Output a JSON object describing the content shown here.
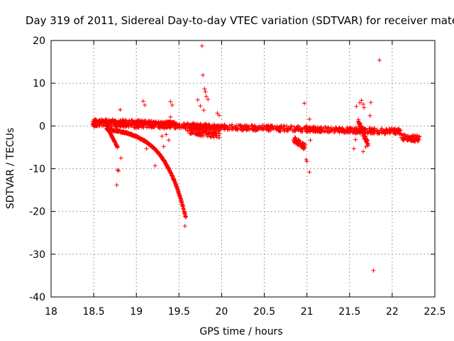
{
  "chart_data": {
    "type": "scatter",
    "title": "Day 319 of 2011, Sidereal Day-to-day VTEC variation (SDTVAR) for receiver mate",
    "xlabel": "GPS time / hours",
    "ylabel": "SDTVAR / TECUs",
    "xlim": [
      18,
      22.5
    ],
    "ylim": [
      -40,
      20
    ],
    "xticks": [
      "18",
      "18.5",
      "19",
      "19.5",
      "20",
      "20.5",
      "21",
      "21.5",
      "22",
      "22.5"
    ],
    "yticks": [
      "-40",
      "-30",
      "-20",
      "-10",
      "0",
      "10",
      "20"
    ],
    "grid": true,
    "marker": "+",
    "color": "#ff0000",
    "dense_bands": [
      {
        "name": "main band",
        "x": [
          18.48,
          22.1
        ],
        "y_start": 0.5,
        "y_end": -1.3,
        "spread": 1.3
      },
      {
        "name": "upper band",
        "x": [
          18.5,
          19.45
        ],
        "y_start": 1.2,
        "y_end": 0.6,
        "spread": 0.9
      },
      {
        "name": "diverging track",
        "x": [
          18.65,
          19.58
        ],
        "y_start": -0.8,
        "y_end": -21.5,
        "curve": "exponential"
      },
      {
        "name": "short descending track",
        "x": [
          18.65,
          18.78
        ],
        "y_start": 0,
        "y_end": -5,
        "curve": "linear"
      },
      {
        "name": "cluster near 19.7-19.9",
        "x": [
          19.6,
          19.98
        ],
        "y_start": -0.5,
        "y_end": -1.5,
        "spread": 2.8
      },
      {
        "name": "cluster near 20.85-20.95",
        "x": [
          20.84,
          20.98
        ],
        "y_start": -3,
        "y_end": -5,
        "spread": 1.5
      },
      {
        "name": "cluster near 21.6-21.72",
        "x": [
          21.6,
          21.72
        ],
        "y_start": 1,
        "y_end": -4.5,
        "spread": 1.5
      },
      {
        "name": "end cluster",
        "x": [
          22.1,
          22.32
        ],
        "y_start": -2.5,
        "y_end": -3,
        "spread": 1.5
      }
    ],
    "outliers": [
      {
        "x": 18.77,
        "y": -13.8
      },
      {
        "x": 18.78,
        "y": -10.3
      },
      {
        "x": 18.79,
        "y": -10.5
      },
      {
        "x": 18.81,
        "y": 3.8
      },
      {
        "x": 18.82,
        "y": -7.5
      },
      {
        "x": 19.08,
        "y": 5.8
      },
      {
        "x": 19.1,
        "y": 4.9
      },
      {
        "x": 19.12,
        "y": -5.3
      },
      {
        "x": 19.22,
        "y": -9.3
      },
      {
        "x": 19.3,
        "y": -2.4
      },
      {
        "x": 19.32,
        "y": -4.8
      },
      {
        "x": 19.35,
        "y": -2.0
      },
      {
        "x": 19.4,
        "y": 5.7
      },
      {
        "x": 19.42,
        "y": 4.9
      },
      {
        "x": 19.4,
        "y": 2.1
      },
      {
        "x": 19.38,
        "y": -3.3
      },
      {
        "x": 19.57,
        "y": -23.4
      },
      {
        "x": 19.72,
        "y": 6.1
      },
      {
        "x": 19.75,
        "y": 4.7
      },
      {
        "x": 19.77,
        "y": 18.7
      },
      {
        "x": 19.78,
        "y": 11.9
      },
      {
        "x": 19.8,
        "y": 8.7
      },
      {
        "x": 19.81,
        "y": 8.0
      },
      {
        "x": 19.82,
        "y": 6.9
      },
      {
        "x": 19.84,
        "y": 6.2
      },
      {
        "x": 19.79,
        "y": 3.7
      },
      {
        "x": 19.95,
        "y": 3.0
      },
      {
        "x": 19.97,
        "y": 2.5
      },
      {
        "x": 20.97,
        "y": 5.3
      },
      {
        "x": 20.99,
        "y": -7.9
      },
      {
        "x": 21.0,
        "y": -8.3
      },
      {
        "x": 21.03,
        "y": 1.6
      },
      {
        "x": 21.03,
        "y": -10.8
      },
      {
        "x": 21.02,
        "y": -0.5
      },
      {
        "x": 21.04,
        "y": -3.3
      },
      {
        "x": 21.55,
        "y": -5.3
      },
      {
        "x": 21.57,
        "y": -3.2
      },
      {
        "x": 21.58,
        "y": 4.6
      },
      {
        "x": 21.62,
        "y": 5.4
      },
      {
        "x": 21.64,
        "y": 6.0
      },
      {
        "x": 21.66,
        "y": 5.1
      },
      {
        "x": 21.67,
        "y": 4.3
      },
      {
        "x": 21.66,
        "y": -6.0
      },
      {
        "x": 21.69,
        "y": -4.9
      },
      {
        "x": 21.75,
        "y": 5.5
      },
      {
        "x": 21.74,
        "y": 2.4
      },
      {
        "x": 21.78,
        "y": -33.8
      },
      {
        "x": 21.85,
        "y": 15.4
      }
    ]
  }
}
